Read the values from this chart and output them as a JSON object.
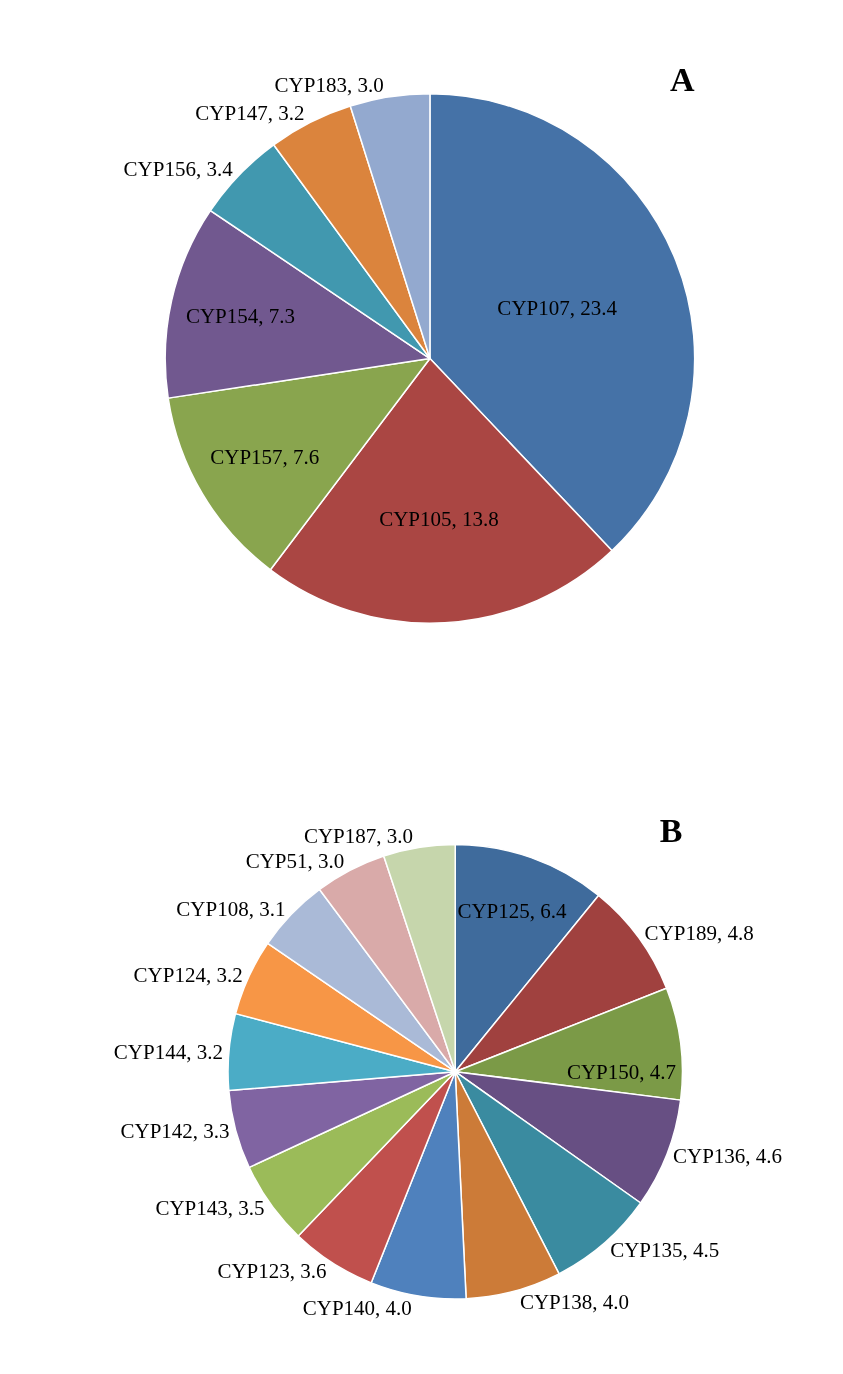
{
  "chart_data": [
    {
      "type": "pie",
      "title": "A",
      "legend": false,
      "categories": [
        "CYP107",
        "CYP105",
        "CYP157",
        "CYP154",
        "CYP156",
        "CYP147",
        "CYP183"
      ],
      "values": [
        23.4,
        13.8,
        7.6,
        7.3,
        3.4,
        3.2,
        3.0
      ],
      "value_labels": [
        ", 23.4",
        ", 13.8",
        ", 7.6",
        ", 7.3",
        ", 3.4",
        ", 3.2",
        ", 3.0"
      ],
      "colors": [
        "#4572a7",
        "#aa4643",
        "#89a54e",
        "#71588f",
        "#4198af",
        "#db843d",
        "#93a9cf"
      ]
    },
    {
      "type": "pie",
      "title": "B",
      "legend": false,
      "categories": [
        "CYP125",
        "CYP189",
        "CYP150",
        "CYP136",
        "CYP135",
        "CYP138",
        "CYP140",
        "CYP123",
        "CYP143",
        "CYP142",
        "CYP144",
        "CYP124",
        "CYP108",
        "CYP51",
        "CYP187"
      ],
      "values": [
        6.4,
        4.8,
        4.7,
        4.6,
        4.5,
        4.0,
        4.0,
        3.6,
        3.5,
        3.3,
        3.2,
        3.2,
        3.1,
        3.0,
        3.0
      ],
      "value_labels": [
        ", 6.4",
        ", 4.8",
        ", 4.7",
        ", 4.6",
        ", 4.5",
        ", 4.0",
        ", 4.0",
        ", 3.6",
        ", 3.5",
        ", 3.3",
        ", 3.2",
        ", 3.2",
        ", 3.1",
        ", 3.0",
        ", 3.0"
      ],
      "colors": [
        "#3f6b9c",
        "#a0413f",
        "#7b9a47",
        "#674f83",
        "#3a8ba0",
        "#cc7b38",
        "#4f81bd",
        "#c0504d",
        "#9bbb59",
        "#8064a2",
        "#4bacc6",
        "#f79646",
        "#aabad7",
        "#d9aaa9",
        "#c6d6ac"
      ]
    }
  ]
}
